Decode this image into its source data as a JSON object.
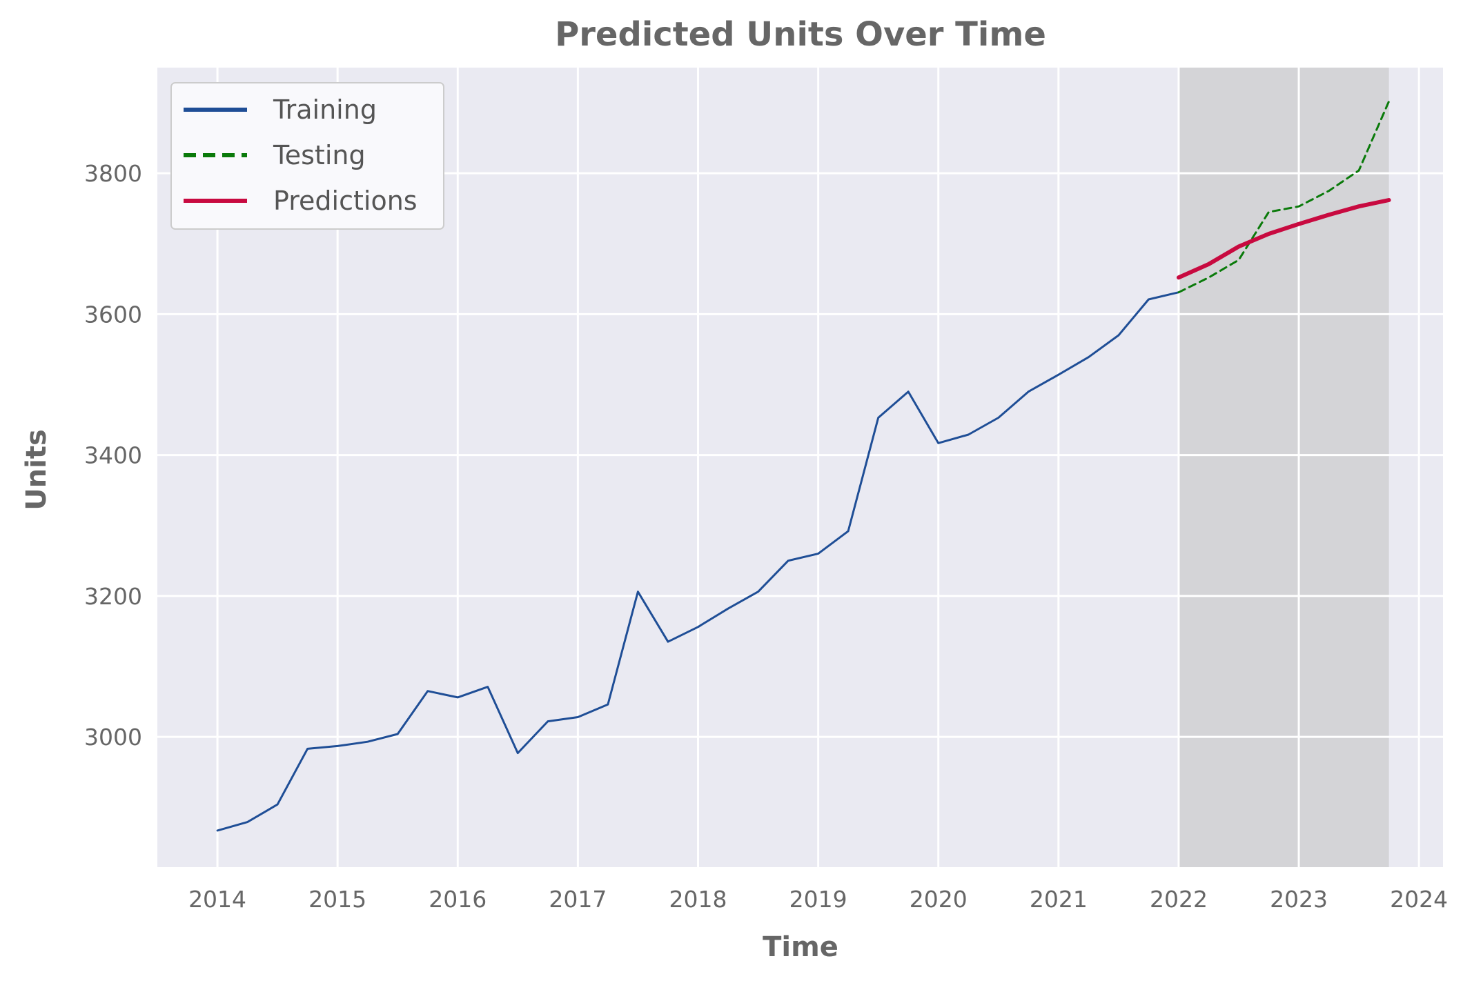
{
  "chart_data": {
    "type": "line",
    "title": "Predicted Units Over Time",
    "xlabel": "Time",
    "ylabel": "Units",
    "xlim": [
      2013.5,
      2024.2
    ],
    "ylim": [
      2815,
      3950
    ],
    "x_ticks": [
      2014,
      2015,
      2016,
      2017,
      2018,
      2019,
      2020,
      2021,
      2022,
      2023,
      2024
    ],
    "x_tick_labels": [
      "2014",
      "2015",
      "2016",
      "2017",
      "2018",
      "2019",
      "2020",
      "2021",
      "2022",
      "2023",
      "2024"
    ],
    "y_ticks": [
      3000,
      3200,
      3400,
      3600,
      3800
    ],
    "y_tick_labels": [
      "3000",
      "3200",
      "3400",
      "3600",
      "3800"
    ],
    "grid": true,
    "legend_position": "top-left",
    "shaded_region": {
      "x_start": 2022.0,
      "x_end": 2023.75,
      "color": "#c8c8c8"
    },
    "colors": {
      "background": "#eaeaf2",
      "grid": "#ffffff",
      "text": "#666666"
    },
    "series": [
      {
        "name": "Training",
        "color": "#1f4e96",
        "style": "solid",
        "x": [
          2014.0,
          2014.25,
          2014.5,
          2014.75,
          2015.0,
          2015.25,
          2015.5,
          2015.75,
          2016.0,
          2016.25,
          2016.5,
          2016.75,
          2017.0,
          2017.25,
          2017.5,
          2017.75,
          2018.0,
          2018.25,
          2018.5,
          2018.75,
          2019.0,
          2019.25,
          2019.5,
          2019.75,
          2020.0,
          2020.25,
          2020.5,
          2020.75,
          2021.0,
          2021.25,
          2021.5,
          2021.75,
          2022.0
        ],
        "y": [
          2867,
          2879,
          2904,
          2983,
          2987,
          2993,
          3004,
          3065,
          3056,
          3071,
          2977,
          3022,
          3028,
          3046,
          3206,
          3135,
          3156,
          3182,
          3206,
          3250,
          3260,
          3292,
          3453,
          3490,
          3417,
          3429,
          3453,
          3490,
          3514,
          3539,
          3570,
          3621,
          3631
        ]
      },
      {
        "name": "Testing",
        "color": "#0a7a0a",
        "style": "dashed",
        "x": [
          2022.0,
          2022.25,
          2022.5,
          2022.75,
          2023.0,
          2023.25,
          2023.5,
          2023.75
        ],
        "y": [
          3631,
          3652,
          3677,
          3745,
          3753,
          3775,
          3804,
          3902
        ]
      },
      {
        "name": "Predictions",
        "color": "#c80a40",
        "style": "solid",
        "x": [
          2022.0,
          2022.25,
          2022.5,
          2022.75,
          2023.0,
          2023.25,
          2023.5,
          2023.75
        ],
        "y": [
          3652,
          3671,
          3696,
          3714,
          3728,
          3741,
          3753,
          3762
        ]
      }
    ]
  }
}
